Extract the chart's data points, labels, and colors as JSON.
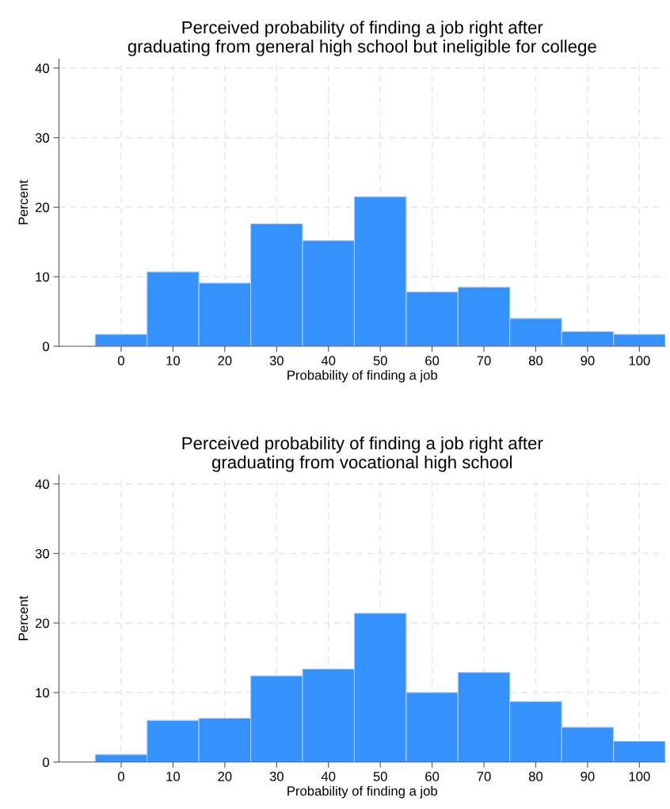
{
  "chart_data": [
    {
      "type": "histogram",
      "title": "Perceived probability of finding a job right after\ngraduating from general high school but ineligible for college",
      "xlabel": "Probability of finding a job",
      "ylabel": "Percent",
      "bins": [
        -5,
        5,
        15,
        25,
        35,
        45,
        55,
        65,
        75,
        85,
        95,
        105
      ],
      "values": [
        1.7,
        10.7,
        9.1,
        17.6,
        15.2,
        21.5,
        7.8,
        8.5,
        4.0,
        2.1,
        1.7
      ],
      "color": "#3592fd",
      "xlim": [
        -12,
        105
      ],
      "ylim": [
        0,
        41.3
      ],
      "xticks": [
        0,
        10,
        20,
        30,
        40,
        50,
        60,
        70,
        80,
        90,
        100
      ],
      "yticks": [
        0,
        10,
        20,
        30,
        40
      ],
      "grid": true
    },
    {
      "type": "histogram",
      "title": "Perceived probability of finding a job right after\ngraduating from vocational high school",
      "xlabel": "Probability of finding a job",
      "ylabel": "Percent",
      "bins": [
        -5,
        5,
        15,
        25,
        35,
        45,
        55,
        65,
        75,
        85,
        95,
        105
      ],
      "values": [
        1.1,
        6.0,
        6.3,
        12.4,
        13.4,
        21.4,
        10.0,
        12.9,
        8.7,
        5.0,
        3.0
      ],
      "color": "#3592fd",
      "xlim": [
        -12,
        105
      ],
      "ylim": [
        0,
        41.3
      ],
      "xticks": [
        0,
        10,
        20,
        30,
        40,
        50,
        60,
        70,
        80,
        90,
        100
      ],
      "yticks": [
        0,
        10,
        20,
        30,
        40
      ],
      "grid": true
    }
  ]
}
